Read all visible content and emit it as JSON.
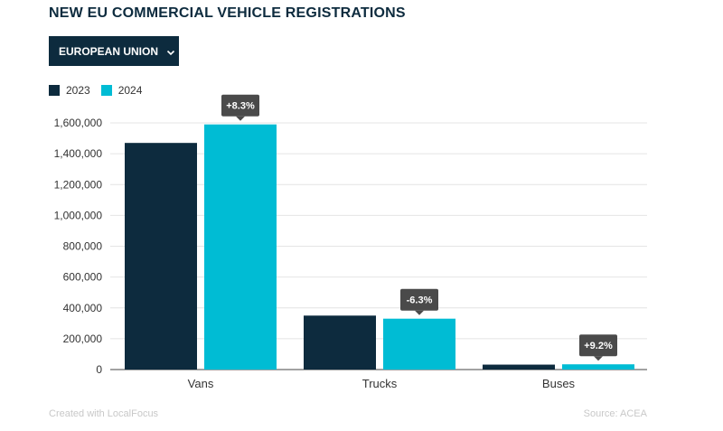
{
  "header": {
    "title": "NEW EU COMMERCIAL VEHICLE REGISTRATIONS",
    "region_selector": "EUROPEAN UNION"
  },
  "footer": {
    "credit": "Created with LocalFocus",
    "source": "Source:  ACEA"
  },
  "colors": {
    "series_2023": "#0d2b3e",
    "series_2024": "#00bcd4",
    "annotation_bg": "#4a4a4a"
  },
  "chart_data": {
    "type": "bar",
    "title": "NEW EU COMMERCIAL VEHICLE REGISTRATIONS",
    "categories": [
      "Vans",
      "Trucks",
      "Buses"
    ],
    "series": [
      {
        "name": "2023",
        "values": [
          1470000,
          350000,
          32000
        ]
      },
      {
        "name": "2024",
        "values": [
          1590000,
          330000,
          34000
        ]
      }
    ],
    "annotations": [
      "+8.3%",
      "-6.3%",
      "+9.2%"
    ],
    "ylim": [
      0,
      1600000
    ],
    "yticks": [
      0,
      200000,
      400000,
      600000,
      800000,
      1000000,
      1200000,
      1400000,
      1600000
    ],
    "ytick_labels": [
      "0",
      "200,000",
      "400,000",
      "600,000",
      "800,000",
      "1,000,000",
      "1,200,000",
      "1,400,000",
      "1,600,000"
    ],
    "xlabel": "",
    "ylabel": "",
    "grid": true,
    "legend": "top-left"
  }
}
